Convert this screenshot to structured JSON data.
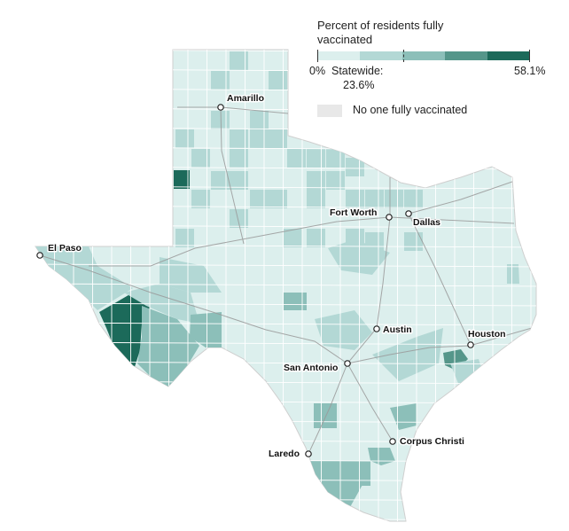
{
  "legend": {
    "title": "Percent of residents fully vaccinated",
    "min_label": "0%",
    "max_label": "58.1%",
    "statewide_label": "Statewide:",
    "statewide_value": "23.6%",
    "statewide_fraction": 0.406,
    "nodata_label": "No one fully vaccinated",
    "scale_colors": [
      "#dcefed",
      "#b3d8d5",
      "#8cbfb9",
      "#55968a",
      "#1c6a5a"
    ],
    "nodata_color": "#e8e8e8"
  },
  "cities": [
    {
      "name": "Amarillo"
    },
    {
      "name": "El Paso"
    },
    {
      "name": "Fort Worth"
    },
    {
      "name": "Dallas"
    },
    {
      "name": "Austin"
    },
    {
      "name": "Houston"
    },
    {
      "name": "San Antonio"
    },
    {
      "name": "Corpus Christi"
    },
    {
      "name": "Laredo"
    }
  ]
}
